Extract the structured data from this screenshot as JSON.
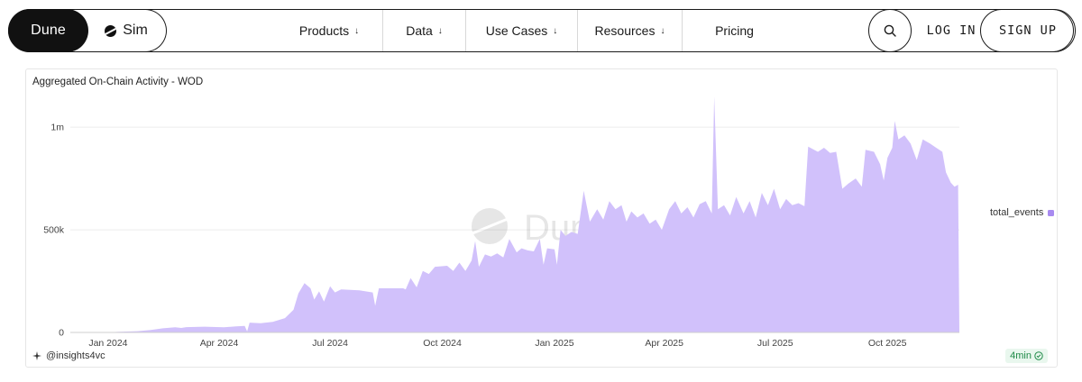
{
  "nav": {
    "brand": "Dune",
    "sim": "Sim",
    "links": [
      {
        "label": "Products",
        "chevron": true,
        "width": 118
      },
      {
        "label": "Data",
        "chevron": true,
        "width": 92
      },
      {
        "label": "Use Cases",
        "chevron": true,
        "width": 124
      },
      {
        "label": "Resources",
        "chevron": true,
        "width": 116
      },
      {
        "label": "Pricing",
        "chevron": false,
        "width": 116
      }
    ],
    "login": "LOG IN",
    "signup": "SIGN UP",
    "icons": {
      "search": "search-icon",
      "sim": "sim-logo-icon"
    }
  },
  "chart_card": {
    "title": "Aggregated On-Chain Activity - WOD",
    "author": "@insights4vc",
    "freshness": "4min",
    "watermark": "Dune"
  },
  "chart_data": {
    "type": "area",
    "title": "Aggregated On-Chain Activity - WOD",
    "xlabel": "",
    "ylabel": "",
    "series": [
      {
        "name": "total_events",
        "color": "#d1c1fb",
        "points": [
          [
            "2023-12-01",
            0
          ],
          [
            "2024-01-01",
            1000
          ],
          [
            "2024-01-10",
            3000
          ],
          [
            "2024-01-25",
            6000
          ],
          [
            "2024-02-05",
            12000
          ],
          [
            "2024-02-15",
            20000
          ],
          [
            "2024-02-25",
            25000
          ],
          [
            "2024-03-01",
            22000
          ],
          [
            "2024-03-05",
            26000
          ],
          [
            "2024-03-20",
            28000
          ],
          [
            "2024-04-05",
            25000
          ],
          [
            "2024-04-15",
            30000
          ],
          [
            "2024-04-22",
            32000
          ],
          [
            "2024-04-24",
            5000
          ],
          [
            "2024-04-26",
            48000
          ],
          [
            "2024-05-05",
            45000
          ],
          [
            "2024-05-15",
            52000
          ],
          [
            "2024-05-25",
            70000
          ],
          [
            "2024-06-01",
            110000
          ],
          [
            "2024-06-05",
            190000
          ],
          [
            "2024-06-10",
            240000
          ],
          [
            "2024-06-15",
            215000
          ],
          [
            "2024-06-18",
            160000
          ],
          [
            "2024-06-22",
            200000
          ],
          [
            "2024-06-26",
            150000
          ],
          [
            "2024-07-01",
            225000
          ],
          [
            "2024-07-05",
            195000
          ],
          [
            "2024-07-10",
            210000
          ],
          [
            "2024-07-25",
            205000
          ],
          [
            "2024-08-05",
            195000
          ],
          [
            "2024-08-07",
            130000
          ],
          [
            "2024-08-10",
            215000
          ],
          [
            "2024-08-30",
            215000
          ],
          [
            "2024-09-01",
            210000
          ],
          [
            "2024-09-05",
            265000
          ],
          [
            "2024-09-10",
            220000
          ],
          [
            "2024-09-15",
            300000
          ],
          [
            "2024-09-20",
            285000
          ],
          [
            "2024-09-25",
            320000
          ],
          [
            "2024-10-05",
            325000
          ],
          [
            "2024-10-10",
            300000
          ],
          [
            "2024-10-15",
            340000
          ],
          [
            "2024-10-20",
            300000
          ],
          [
            "2024-10-25",
            350000
          ],
          [
            "2024-10-28",
            445000
          ],
          [
            "2024-10-31",
            320000
          ],
          [
            "2024-11-05",
            380000
          ],
          [
            "2024-11-10",
            370000
          ],
          [
            "2024-11-15",
            385000
          ],
          [
            "2024-11-20",
            365000
          ],
          [
            "2024-11-25",
            455000
          ],
          [
            "2024-12-01",
            390000
          ],
          [
            "2024-12-05",
            410000
          ],
          [
            "2024-12-10",
            400000
          ],
          [
            "2024-12-15",
            395000
          ],
          [
            "2024-12-20",
            455000
          ],
          [
            "2024-12-23",
            330000
          ],
          [
            "2024-12-26",
            410000
          ],
          [
            "2025-01-01",
            405000
          ],
          [
            "2025-01-03",
            330000
          ],
          [
            "2025-01-06",
            500000
          ],
          [
            "2025-01-10",
            470000
          ],
          [
            "2025-01-15",
            490000
          ],
          [
            "2025-01-20",
            480000
          ],
          [
            "2025-01-25",
            690000
          ],
          [
            "2025-01-30",
            540000
          ],
          [
            "2025-02-05",
            600000
          ],
          [
            "2025-02-10",
            550000
          ],
          [
            "2025-02-15",
            640000
          ],
          [
            "2025-02-20",
            600000
          ],
          [
            "2025-02-25",
            620000
          ],
          [
            "2025-03-01",
            540000
          ],
          [
            "2025-03-05",
            590000
          ],
          [
            "2025-03-10",
            560000
          ],
          [
            "2025-03-15",
            580000
          ],
          [
            "2025-03-20",
            530000
          ],
          [
            "2025-03-25",
            550000
          ],
          [
            "2025-03-30",
            500000
          ],
          [
            "2025-04-05",
            600000
          ],
          [
            "2025-04-10",
            640000
          ],
          [
            "2025-04-15",
            580000
          ],
          [
            "2025-04-20",
            610000
          ],
          [
            "2025-04-25",
            560000
          ],
          [
            "2025-04-30",
            625000
          ],
          [
            "2025-05-05",
            640000
          ],
          [
            "2025-05-10",
            580000
          ],
          [
            "2025-05-12",
            1150000
          ],
          [
            "2025-05-15",
            600000
          ],
          [
            "2025-05-20",
            620000
          ],
          [
            "2025-05-25",
            570000
          ],
          [
            "2025-05-30",
            660000
          ],
          [
            "2025-06-05",
            580000
          ],
          [
            "2025-06-10",
            640000
          ],
          [
            "2025-06-15",
            560000
          ],
          [
            "2025-06-20",
            680000
          ],
          [
            "2025-06-25",
            620000
          ],
          [
            "2025-06-30",
            700000
          ],
          [
            "2025-07-05",
            600000
          ],
          [
            "2025-07-10",
            650000
          ],
          [
            "2025-07-15",
            620000
          ],
          [
            "2025-07-20",
            630000
          ],
          [
            "2025-07-25",
            615000
          ],
          [
            "2025-07-28",
            905000
          ],
          [
            "2025-08-05",
            880000
          ],
          [
            "2025-08-10",
            900000
          ],
          [
            "2025-08-15",
            875000
          ],
          [
            "2025-08-20",
            880000
          ],
          [
            "2025-08-25",
            700000
          ],
          [
            "2025-08-30",
            725000
          ],
          [
            "2025-09-05",
            750000
          ],
          [
            "2025-09-10",
            710000
          ],
          [
            "2025-09-13",
            890000
          ],
          [
            "2025-09-20",
            880000
          ],
          [
            "2025-09-25",
            820000
          ],
          [
            "2025-09-28",
            740000
          ],
          [
            "2025-10-01",
            850000
          ],
          [
            "2025-10-05",
            900000
          ],
          [
            "2025-10-07",
            1030000
          ],
          [
            "2025-10-10",
            940000
          ],
          [
            "2025-10-15",
            960000
          ],
          [
            "2025-10-20",
            920000
          ],
          [
            "2025-10-25",
            840000
          ],
          [
            "2025-10-30",
            940000
          ],
          [
            "2025-11-05",
            920000
          ],
          [
            "2025-11-10",
            900000
          ],
          [
            "2025-11-15",
            880000
          ],
          [
            "2025-11-18",
            780000
          ],
          [
            "2025-11-22",
            730000
          ],
          [
            "2025-11-25",
            710000
          ],
          [
            "2025-11-28",
            720000
          ],
          [
            "2025-11-29",
            0
          ]
        ]
      }
    ],
    "x_ticks": [
      {
        "date": "2024-01-01",
        "label": "Jan 2024"
      },
      {
        "date": "2024-04-01",
        "label": "Apr 2024"
      },
      {
        "date": "2024-07-01",
        "label": "Jul 2024"
      },
      {
        "date": "2024-10-01",
        "label": "Oct 2024"
      },
      {
        "date": "2025-01-01",
        "label": "Jan 2025"
      },
      {
        "date": "2025-04-01",
        "label": "Apr 2025"
      },
      {
        "date": "2025-07-01",
        "label": "Jul 2025"
      },
      {
        "date": "2025-10-01",
        "label": "Oct 2025"
      }
    ],
    "y_ticks": [
      {
        "value": 0,
        "label": "0"
      },
      {
        "value": 500000,
        "label": "500k"
      },
      {
        "value": 1000000,
        "label": "1m"
      }
    ],
    "xlim": [
      "2023-12-01",
      "2025-11-29"
    ],
    "ylim": [
      0,
      1150000
    ],
    "grid": true,
    "legend": "right"
  }
}
